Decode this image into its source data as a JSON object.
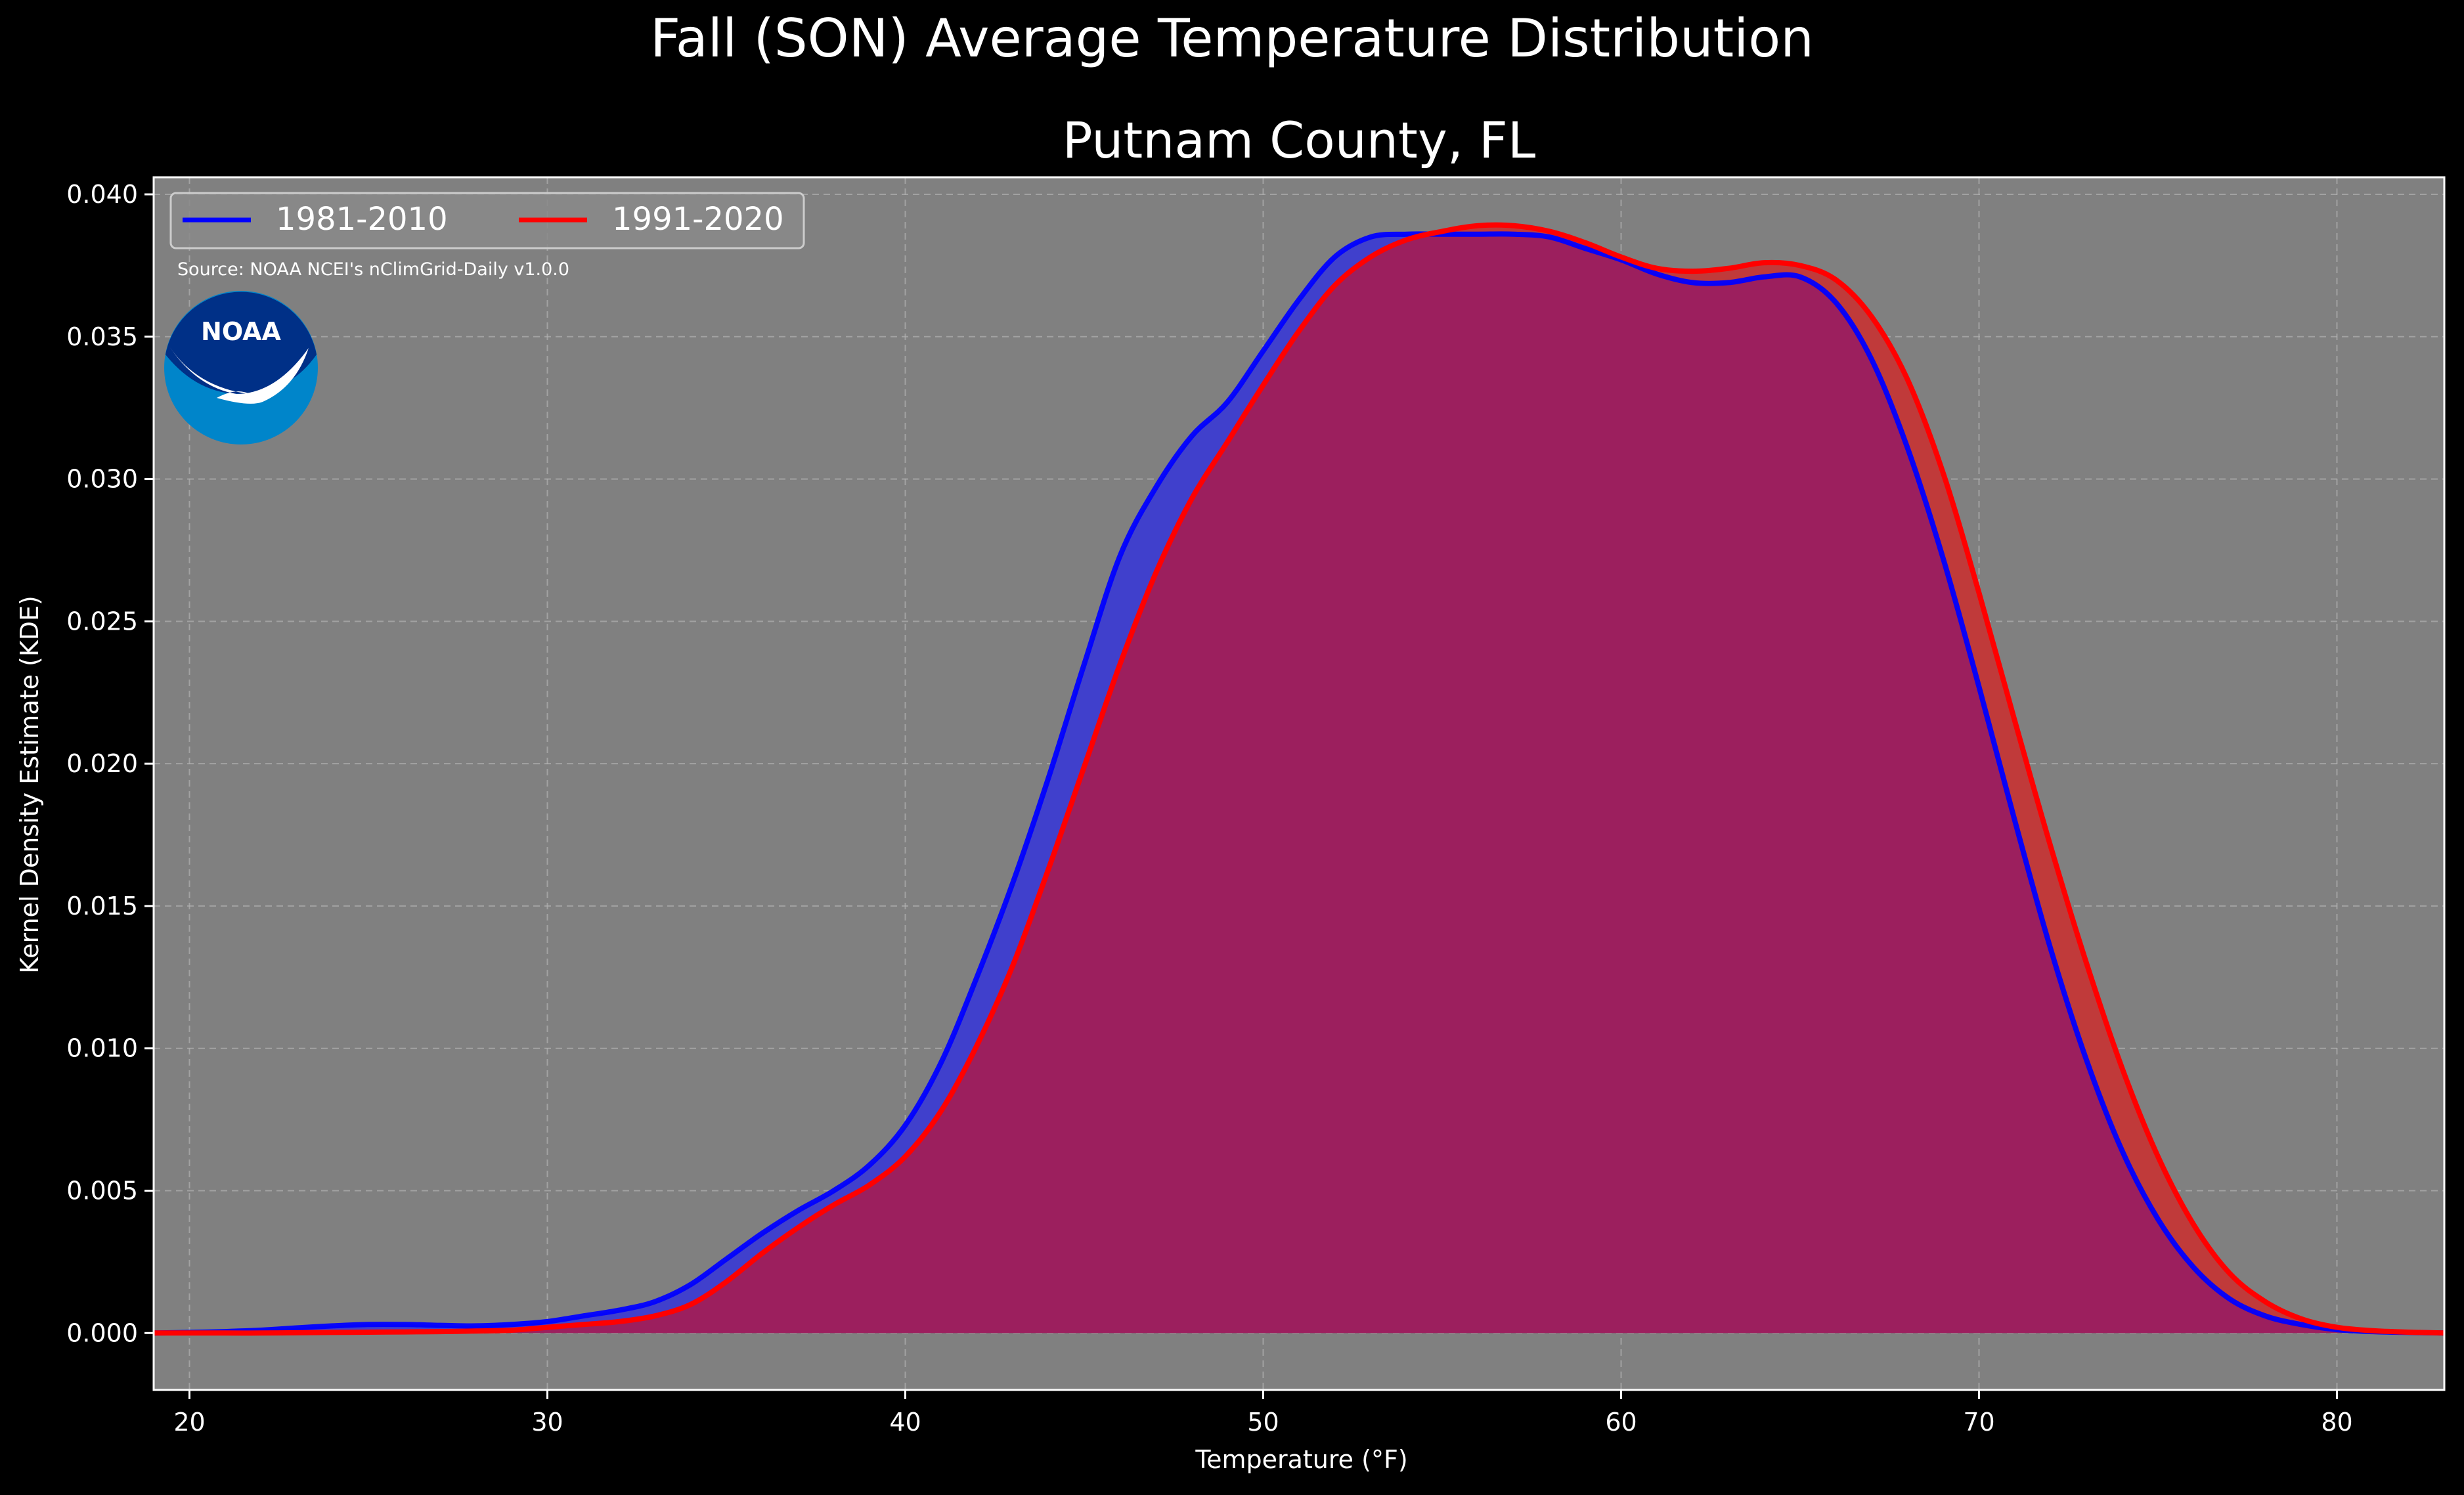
{
  "chart_data": {
    "type": "area",
    "title": "Fall (SON) Average Temperature Distribution",
    "subtitle": "Putnam County, FL",
    "xlabel": "Temperature (°F)",
    "ylabel": "Kernel Density Estimate (KDE)",
    "source": "Source: NOAA NCEI's nClimGrid-Daily v1.0.0",
    "logo_text": "NOAA",
    "xlim": [
      19,
      83
    ],
    "ylim": [
      -0.002,
      0.0406
    ],
    "xticks": [
      20,
      30,
      40,
      50,
      60,
      70,
      80
    ],
    "yticks": [
      0.0,
      0.005,
      0.01,
      0.015,
      0.02,
      0.025,
      0.03,
      0.035,
      0.04
    ],
    "grid": true,
    "legend_position": "top-left",
    "colors": {
      "figure_bg": "#000000",
      "axes_bg": "#808080",
      "text": "#ffffff",
      "grid": "#b0b0b0",
      "overlap_fill": "#9c1f5e",
      "logo_outer": "#0085ca",
      "logo_inner": "#003087"
    },
    "x": [
      19,
      20,
      21,
      22,
      23,
      24,
      25,
      26,
      27,
      28,
      29,
      30,
      31,
      32,
      33,
      34,
      35,
      36,
      37,
      38,
      39,
      40,
      41,
      42,
      43,
      44,
      45,
      46,
      47,
      48,
      49,
      50,
      51,
      52,
      53,
      54,
      55,
      56,
      57,
      58,
      59,
      60,
      61,
      62,
      63,
      64,
      65,
      66,
      67,
      68,
      69,
      70,
      71,
      72,
      73,
      74,
      75,
      76,
      77,
      78,
      79,
      80,
      81,
      82,
      83
    ],
    "series": [
      {
        "name": "1981-2010",
        "color": "#0000ff",
        "fill": "#4040cc",
        "values": [
          0.0,
          2e-05,
          5e-05,
          0.0001,
          0.00018,
          0.00025,
          0.0003,
          0.0003,
          0.00027,
          0.00025,
          0.0003,
          0.0004,
          0.0006,
          0.0008,
          0.0011,
          0.0017,
          0.0026,
          0.0035,
          0.0043,
          0.005,
          0.0059,
          0.0073,
          0.0095,
          0.0125,
          0.0158,
          0.0195,
          0.0235,
          0.0273,
          0.0297,
          0.0315,
          0.0327,
          0.0345,
          0.0363,
          0.0378,
          0.0385,
          0.0386,
          0.0386,
          0.0386,
          0.0386,
          0.0385,
          0.0381,
          0.0377,
          0.0372,
          0.0369,
          0.0369,
          0.0371,
          0.0371,
          0.0362,
          0.0342,
          0.0311,
          0.0272,
          0.0227,
          0.018,
          0.0135,
          0.0096,
          0.0064,
          0.004,
          0.0023,
          0.0012,
          0.0006,
          0.0003,
          0.00012,
          5e-05,
          2e-05,
          0.0
        ]
      },
      {
        "name": "1991-2020",
        "color": "#ff0000",
        "fill": "#c03a3a",
        "values": [
          0.0,
          0.0,
          0.0,
          0.0,
          1e-05,
          2e-05,
          3e-05,
          4e-05,
          5e-05,
          7e-05,
          0.0001,
          0.0002,
          0.0003,
          0.0004,
          0.0006,
          0.001,
          0.0018,
          0.0028,
          0.0037,
          0.0045,
          0.0052,
          0.0062,
          0.0078,
          0.0101,
          0.0129,
          0.0163,
          0.0199,
          0.0235,
          0.0267,
          0.0293,
          0.0313,
          0.0333,
          0.0352,
          0.0368,
          0.0378,
          0.0384,
          0.0387,
          0.0389,
          0.0389,
          0.0387,
          0.0383,
          0.0378,
          0.0374,
          0.0373,
          0.0374,
          0.0376,
          0.0375,
          0.037,
          0.0357,
          0.0335,
          0.0302,
          0.026,
          0.0215,
          0.0171,
          0.013,
          0.0093,
          0.0062,
          0.0038,
          0.0021,
          0.0011,
          0.0005,
          0.0002,
          8e-05,
          3e-05,
          0.0
        ]
      }
    ]
  }
}
